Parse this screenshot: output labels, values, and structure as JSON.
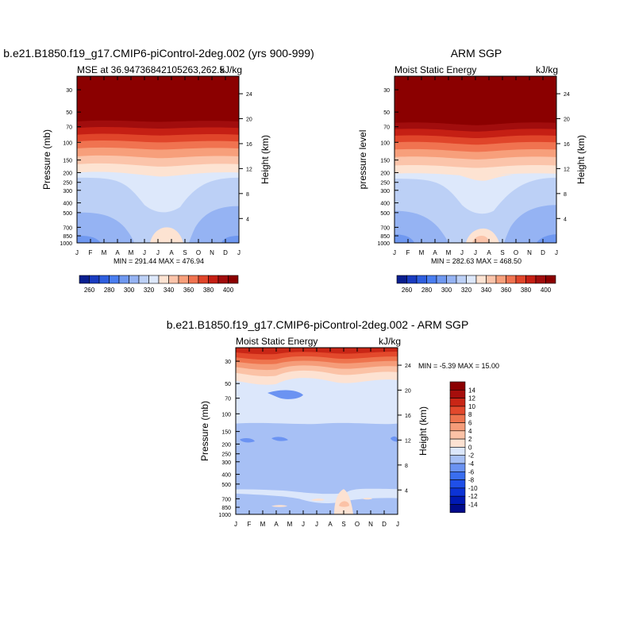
{
  "panel_left": {
    "title": "b.e21.B1850.f19_g17.CMIP6-piControl-2deg.002 (yrs 900-999)",
    "subtitle_left": "MSE at 36.94736842105263,262.5",
    "subtitle_right": "kJ/kg",
    "ylabel": "Pressure (mb)",
    "ylabel_right": "Height (km)",
    "minmax": "MIN = 291.44 MAX = 476.94"
  },
  "panel_right": {
    "title": "ARM SGP",
    "subtitle_left": "Moist Static Energy",
    "subtitle_right": "kJ/kg",
    "ylabel": "pressure level",
    "ylabel_right": "Height (km)",
    "minmax": "MIN = 282.63 MAX = 468.50"
  },
  "panel_diff": {
    "title": "b.e21.B1850.f19_g17.CMIP6-piControl-2deg.002 - ARM SGP",
    "subtitle_left": "Moist Static Energy",
    "subtitle_right": "kJ/kg",
    "ylabel": "Pressure (mb)",
    "ylabel_right": "Height (km)",
    "minmax": "MIN =  -5.39 MAX =  15.00"
  },
  "chart_data": [
    {
      "type": "heatmap",
      "title": "b.e21.B1850.f19_g17.CMIP6-piControl-2deg.002 (yrs 900-999)",
      "subtitle": "MSE at 36.94736842105263,262.5",
      "units": "kJ/kg",
      "x_ticks": [
        "J",
        "F",
        "M",
        "A",
        "M",
        "J",
        "J",
        "A",
        "S",
        "O",
        "N",
        "D",
        "J"
      ],
      "y_ticks": [
        30,
        50,
        70,
        100,
        150,
        200,
        250,
        300,
        400,
        500,
        700,
        850,
        1000
      ],
      "y_scale": "log",
      "ylim": [
        1000,
        22
      ],
      "ylabel": "Pressure (mb)",
      "y2_ticks": [
        4,
        8,
        12,
        16,
        20,
        24
      ],
      "y2label": "Height (km)",
      "colorbar_levels": [
        260,
        270,
        280,
        290,
        300,
        310,
        320,
        330,
        340,
        350,
        360,
        370,
        380,
        390,
        400
      ],
      "colorbar_labels": [
        "260",
        "280",
        "300",
        "320",
        "340",
        "360",
        "380",
        "400"
      ],
      "min": 291.44,
      "max": 476.94
    },
    {
      "type": "heatmap",
      "title": "ARM SGP",
      "subtitle": "Moist Static Energy",
      "units": "kJ/kg",
      "x_ticks": [
        "J",
        "F",
        "M",
        "A",
        "M",
        "J",
        "J",
        "A",
        "S",
        "O",
        "N",
        "D",
        "J"
      ],
      "y_ticks": [
        30,
        50,
        70,
        100,
        150,
        200,
        250,
        300,
        400,
        500,
        700,
        850,
        1000
      ],
      "y_scale": "log",
      "ylim": [
        1000,
        22
      ],
      "ylabel": "pressure level",
      "y2_ticks": [
        4,
        8,
        12,
        16,
        20,
        24
      ],
      "y2label": "Height (km)",
      "colorbar_levels": [
        260,
        270,
        280,
        290,
        300,
        310,
        320,
        330,
        340,
        350,
        360,
        370,
        380,
        390,
        400
      ],
      "colorbar_labels": [
        "260",
        "280",
        "300",
        "320",
        "340",
        "360",
        "380",
        "400"
      ],
      "min": 282.63,
      "max": 468.5
    },
    {
      "type": "heatmap",
      "title": "b.e21.B1850.f19_g17.CMIP6-piControl-2deg.002 - ARM SGP",
      "subtitle": "Moist Static Energy",
      "units": "kJ/kg",
      "x_ticks": [
        "J",
        "F",
        "M",
        "A",
        "M",
        "J",
        "J",
        "A",
        "S",
        "O",
        "N",
        "D",
        "J"
      ],
      "y_ticks": [
        30,
        50,
        70,
        100,
        150,
        200,
        250,
        300,
        400,
        500,
        700,
        850,
        1000
      ],
      "y_scale": "log",
      "ylim": [
        1000,
        22
      ],
      "ylabel": "Pressure (mb)",
      "y2_ticks": [
        4,
        8,
        12,
        16,
        20,
        24
      ],
      "y2label": "Height (km)",
      "colorbar_levels": [
        -14,
        -12,
        -10,
        -8,
        -6,
        -4,
        -2,
        0,
        2,
        4,
        6,
        8,
        10,
        12,
        14
      ],
      "colorbar_labels": [
        "14",
        "12",
        "10",
        "8",
        "6",
        "4",
        "2",
        "0",
        "-2",
        "-4",
        "-6",
        "-8",
        "-10",
        "-12",
        "-14"
      ],
      "min": -5.39,
      "max": 15.0
    }
  ],
  "colors": {
    "seq_palette": [
      "#0a1f8f",
      "#1a3cc0",
      "#2f5fdf",
      "#4a7ef0",
      "#6f98f0",
      "#95b3f3",
      "#bcd0f6",
      "#dde8fb",
      "#fde3d2",
      "#fbc4aa",
      "#f79f7b",
      "#f07350",
      "#e0452a",
      "#c51f14",
      "#a10d0d",
      "#8b0000"
    ],
    "div_palette": [
      "#000b8b",
      "#0019b3",
      "#0c33d6",
      "#1f4fe8",
      "#3a6eef",
      "#6b93f2",
      "#a7c0f5",
      "#dce7fb",
      "#fde2d2",
      "#fbc2a6",
      "#f59c79",
      "#ee744e",
      "#e3492c",
      "#c92616",
      "#a60e0c",
      "#8b0000"
    ]
  }
}
